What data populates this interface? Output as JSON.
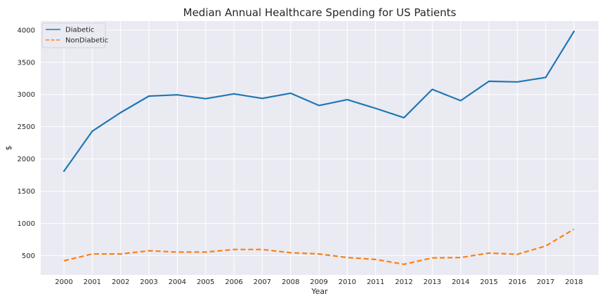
{
  "chart_data": {
    "type": "line",
    "title": "Median Annual Healthcare Spending for US Patients",
    "xlabel": "Year",
    "ylabel": "$",
    "x": [
      2000,
      2001,
      2002,
      2003,
      2004,
      2005,
      2006,
      2007,
      2008,
      2009,
      2010,
      2011,
      2012,
      2013,
      2014,
      2015,
      2016,
      2017,
      2018
    ],
    "x_tick_labels": [
      "2000",
      "2001",
      "2002",
      "2003",
      "2004",
      "2005",
      "2006",
      "2007",
      "2008",
      "2009",
      "2010",
      "2011",
      "2012",
      "2013",
      "2014",
      "2015",
      "2016",
      "2017",
      "2018"
    ],
    "y_ticks": [
      500,
      1000,
      1500,
      2000,
      2500,
      3000,
      3500,
      4000
    ],
    "ylim": [
      200,
      4140
    ],
    "grid": true,
    "legend_position": "top-left",
    "background": "#eaeaf2",
    "series": [
      {
        "name": "Diabetic",
        "color": "#1f77b4",
        "style": "solid",
        "values": [
          1810,
          2430,
          2720,
          2975,
          2995,
          2935,
          3010,
          2940,
          3020,
          2830,
          2920,
          2785,
          2640,
          3080,
          2905,
          3205,
          3195,
          3265,
          3980
        ]
      },
      {
        "name": "NonDiabetic",
        "color": "#ff7f0e",
        "style": "dashed",
        "values": [
          420,
          525,
          525,
          575,
          555,
          555,
          595,
          595,
          545,
          525,
          470,
          440,
          365,
          465,
          470,
          540,
          520,
          650,
          910
        ]
      }
    ]
  }
}
